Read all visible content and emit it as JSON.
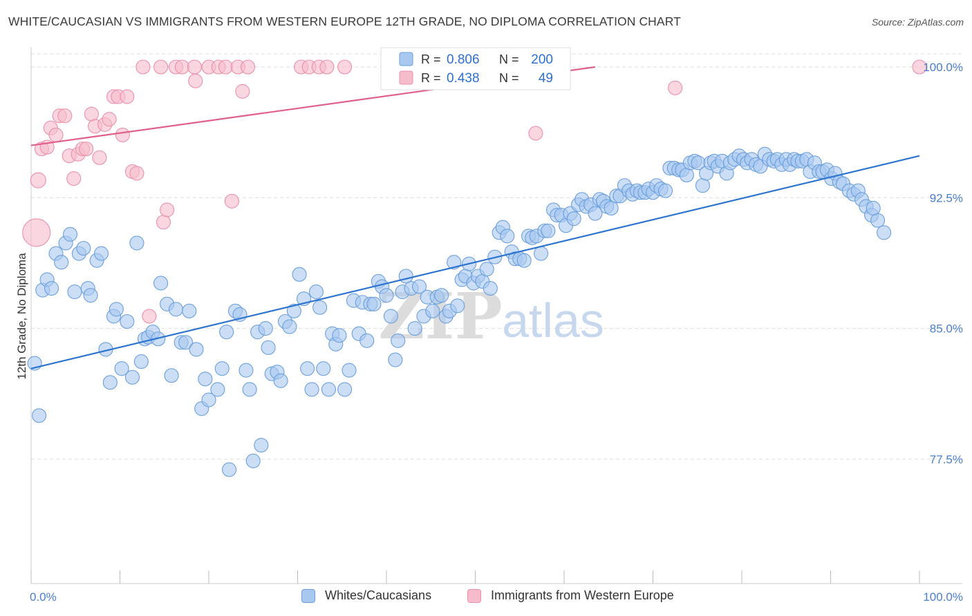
{
  "title": "WHITE/CAUCASIAN VS IMMIGRANTS FROM WESTERN EUROPE 12TH GRADE, NO DIPLOMA CORRELATION CHART",
  "source": "Source: ZipAtlas.com",
  "watermark": {
    "zip": "ZIP",
    "atlas": "atlas"
  },
  "colors": {
    "blue_fill": "#a9c8f0",
    "blue_stroke": "#6a9fdc",
    "blue_line": "#2d74d0",
    "pink_fill": "#f7bccb",
    "pink_stroke": "#ec8fa8",
    "pink_line": "#e0608a",
    "axis_text": "#4a7fcc",
    "grid": "#dddddd"
  },
  "stats_legend": {
    "rows": [
      {
        "r_label": "R =",
        "r_value": "0.806",
        "n_label": "N =",
        "n_value": "200"
      },
      {
        "r_label": "R =",
        "r_value": "0.438",
        "n_label": "N =",
        "n_value": "49"
      }
    ]
  },
  "chart_data": {
    "type": "scatter",
    "title": "WHITE/CAUCASIAN VS IMMIGRANTS FROM WESTERN EUROPE 12TH GRADE, NO DIPLOMA CORRELATION CHART",
    "xlabel": "",
    "ylabel": "12th Grade, No Diploma",
    "xlim": [
      0,
      100
    ],
    "ylim": [
      70.0,
      101.0
    ],
    "x_tick_labels": [
      "0.0%",
      "100.0%"
    ],
    "y_ticks": [
      77.5,
      85.0,
      92.5,
      100.0
    ],
    "y_tick_labels": [
      "77.5%",
      "85.0%",
      "92.5%",
      "100.0%"
    ],
    "grid": true,
    "legend_position": "bottom",
    "series": [
      {
        "name": "Whites/Caucasians",
        "color": "#a9c8f0",
        "trend": {
          "x": [
            0,
            100
          ],
          "y": [
            82.7,
            94.9
          ]
        },
        "points": [
          [
            0.4,
            83.0
          ],
          [
            0.9,
            80.0
          ],
          [
            1.3,
            87.2
          ],
          [
            1.8,
            87.8
          ],
          [
            2.3,
            87.3
          ],
          [
            2.8,
            89.3
          ],
          [
            3.4,
            88.8
          ],
          [
            3.9,
            89.9
          ],
          [
            4.4,
            90.4
          ],
          [
            4.9,
            87.1
          ],
          [
            5.4,
            89.3
          ],
          [
            5.9,
            89.6
          ],
          [
            6.4,
            87.3
          ],
          [
            6.7,
            86.9
          ],
          [
            7.4,
            88.9
          ],
          [
            7.9,
            89.3
          ],
          [
            8.4,
            83.8
          ],
          [
            8.9,
            81.9
          ],
          [
            9.3,
            85.7
          ],
          [
            9.6,
            86.1
          ],
          [
            10.2,
            82.7
          ],
          [
            10.8,
            85.4
          ],
          [
            11.4,
            82.2
          ],
          [
            11.9,
            89.9
          ],
          [
            12.4,
            83.1
          ],
          [
            12.8,
            84.4
          ],
          [
            13.2,
            84.5
          ],
          [
            13.7,
            84.8
          ],
          [
            14.3,
            84.4
          ],
          [
            14.6,
            87.6
          ],
          [
            15.3,
            86.4
          ],
          [
            15.8,
            82.3
          ],
          [
            16.3,
            86.1
          ],
          [
            16.9,
            84.2
          ],
          [
            17.4,
            84.2
          ],
          [
            17.8,
            86.0
          ],
          [
            18.6,
            83.8
          ],
          [
            19.2,
            80.4
          ],
          [
            19.6,
            82.1
          ],
          [
            20.0,
            80.9
          ],
          [
            21.0,
            81.5
          ],
          [
            21.5,
            82.7
          ],
          [
            22.0,
            84.8
          ],
          [
            22.3,
            76.9
          ],
          [
            23.0,
            86.0
          ],
          [
            23.5,
            85.8
          ],
          [
            24.2,
            82.6
          ],
          [
            24.6,
            81.5
          ],
          [
            25.0,
            77.4
          ],
          [
            25.5,
            84.8
          ],
          [
            25.9,
            78.3
          ],
          [
            26.4,
            85.0
          ],
          [
            26.7,
            83.9
          ],
          [
            27.1,
            82.4
          ],
          [
            27.7,
            82.5
          ],
          [
            28.1,
            82.0
          ],
          [
            28.6,
            85.4
          ],
          [
            29.1,
            85.1
          ],
          [
            29.6,
            86.0
          ],
          [
            30.2,
            88.1
          ],
          [
            30.7,
            86.7
          ],
          [
            31.1,
            82.7
          ],
          [
            31.6,
            81.5
          ],
          [
            32.1,
            87.1
          ],
          [
            32.5,
            86.2
          ],
          [
            32.9,
            82.7
          ],
          [
            33.5,
            81.5
          ],
          [
            33.9,
            84.7
          ],
          [
            34.3,
            84.1
          ],
          [
            34.7,
            84.6
          ],
          [
            35.3,
            81.5
          ],
          [
            35.8,
            82.6
          ],
          [
            36.3,
            86.6
          ],
          [
            36.9,
            84.7
          ],
          [
            37.3,
            86.5
          ],
          [
            37.8,
            84.3
          ],
          [
            38.2,
            86.4
          ],
          [
            38.6,
            86.4
          ],
          [
            39.1,
            87.7
          ],
          [
            39.5,
            87.4
          ],
          [
            40.0,
            86.9
          ],
          [
            40.5,
            85.7
          ],
          [
            41.0,
            83.2
          ],
          [
            41.3,
            84.3
          ],
          [
            41.8,
            87.1
          ],
          [
            42.2,
            88.0
          ],
          [
            42.8,
            87.3
          ],
          [
            43.2,
            85.0
          ],
          [
            43.7,
            87.4
          ],
          [
            44.2,
            85.7
          ],
          [
            44.6,
            86.8
          ],
          [
            45.2,
            86.0
          ],
          [
            45.7,
            86.8
          ],
          [
            46.2,
            86.9
          ],
          [
            46.7,
            85.7
          ],
          [
            47.1,
            86.0
          ],
          [
            47.6,
            88.8
          ],
          [
            48.0,
            86.3
          ],
          [
            48.5,
            87.8
          ],
          [
            48.9,
            88.0
          ],
          [
            49.3,
            88.7
          ],
          [
            49.8,
            87.6
          ],
          [
            50.3,
            88.0
          ],
          [
            50.8,
            87.7
          ],
          [
            51.3,
            88.4
          ],
          [
            51.7,
            87.3
          ],
          [
            52.2,
            89.1
          ],
          [
            52.7,
            90.5
          ],
          [
            53.1,
            90.8
          ],
          [
            53.6,
            90.3
          ],
          [
            54.1,
            89.4
          ],
          [
            54.5,
            89.0
          ],
          [
            55.0,
            89.0
          ],
          [
            55.5,
            88.9
          ],
          [
            56.0,
            90.3
          ],
          [
            56.4,
            90.2
          ],
          [
            56.9,
            90.3
          ],
          [
            57.4,
            89.3
          ],
          [
            57.8,
            90.6
          ],
          [
            58.2,
            90.6
          ],
          [
            58.8,
            91.8
          ],
          [
            59.2,
            91.5
          ],
          [
            59.7,
            91.5
          ],
          [
            60.2,
            90.9
          ],
          [
            60.7,
            91.6
          ],
          [
            61.1,
            91.3
          ],
          [
            61.6,
            92.1
          ],
          [
            62.0,
            92.4
          ],
          [
            62.5,
            92.0
          ],
          [
            63.0,
            92.1
          ],
          [
            63.5,
            91.6
          ],
          [
            64.0,
            92.4
          ],
          [
            64.4,
            92.3
          ],
          [
            64.8,
            92.0
          ],
          [
            65.3,
            91.9
          ],
          [
            65.9,
            92.6
          ],
          [
            66.3,
            92.6
          ],
          [
            66.8,
            93.2
          ],
          [
            67.3,
            92.9
          ],
          [
            67.7,
            92.7
          ],
          [
            68.2,
            92.9
          ],
          [
            68.6,
            92.8
          ],
          [
            69.1,
            92.8
          ],
          [
            69.5,
            93.0
          ],
          [
            70.0,
            92.8
          ],
          [
            70.4,
            93.2
          ],
          [
            70.9,
            93.0
          ],
          [
            71.4,
            92.9
          ],
          [
            71.9,
            94.2
          ],
          [
            72.4,
            94.2
          ],
          [
            72.9,
            94.1
          ],
          [
            73.3,
            94.1
          ],
          [
            73.8,
            93.8
          ],
          [
            74.2,
            94.5
          ],
          [
            74.7,
            94.6
          ],
          [
            75.1,
            94.5
          ],
          [
            75.6,
            93.2
          ],
          [
            76.0,
            93.9
          ],
          [
            76.5,
            94.5
          ],
          [
            76.9,
            94.6
          ],
          [
            77.3,
            94.3
          ],
          [
            77.8,
            94.6
          ],
          [
            78.3,
            93.9
          ],
          [
            78.7,
            94.5
          ],
          [
            79.2,
            94.7
          ],
          [
            79.7,
            94.9
          ],
          [
            80.2,
            94.7
          ],
          [
            80.6,
            94.5
          ],
          [
            81.1,
            94.7
          ],
          [
            81.6,
            94.4
          ],
          [
            82.1,
            94.3
          ],
          [
            82.6,
            95.0
          ],
          [
            83.1,
            94.7
          ],
          [
            83.6,
            94.6
          ],
          [
            84.0,
            94.7
          ],
          [
            84.5,
            94.4
          ],
          [
            85.0,
            94.7
          ],
          [
            85.4,
            94.4
          ],
          [
            85.9,
            94.7
          ],
          [
            86.3,
            94.6
          ],
          [
            86.8,
            94.6
          ],
          [
            87.3,
            94.7
          ],
          [
            87.7,
            94.0
          ],
          [
            88.2,
            94.5
          ],
          [
            88.7,
            94.0
          ],
          [
            89.1,
            94.0
          ],
          [
            89.6,
            94.1
          ],
          [
            90.1,
            93.6
          ],
          [
            90.5,
            93.9
          ],
          [
            91.0,
            93.4
          ],
          [
            91.4,
            93.3
          ],
          [
            92.1,
            92.9
          ],
          [
            92.6,
            92.7
          ],
          [
            93.1,
            92.9
          ],
          [
            93.5,
            92.4
          ],
          [
            94.0,
            92.0
          ],
          [
            94.6,
            91.5
          ],
          [
            95.3,
            91.2
          ],
          [
            96.0,
            90.5
          ],
          [
            94.8,
            91.9
          ]
        ]
      },
      {
        "name": "Immigrants from Western Europe",
        "color": "#f7bccb",
        "trend": {
          "x": [
            0,
            63.5
          ],
          "y": [
            95.5,
            100.0
          ]
        },
        "points": [
          [
            0.6,
            90.5
          ],
          [
            0.8,
            93.5
          ],
          [
            1.2,
            95.3
          ],
          [
            1.8,
            95.4
          ],
          [
            2.2,
            96.5
          ],
          [
            2.8,
            96.1
          ],
          [
            3.2,
            97.2
          ],
          [
            3.8,
            97.2
          ],
          [
            4.3,
            94.9
          ],
          [
            4.8,
            93.6
          ],
          [
            5.3,
            95.0
          ],
          [
            5.8,
            95.3
          ],
          [
            6.2,
            95.3
          ],
          [
            6.8,
            97.3
          ],
          [
            7.2,
            96.6
          ],
          [
            7.7,
            94.8
          ],
          [
            8.3,
            96.7
          ],
          [
            8.8,
            97.0
          ],
          [
            9.3,
            98.3
          ],
          [
            9.8,
            98.3
          ],
          [
            10.3,
            96.1
          ],
          [
            10.8,
            98.3
          ],
          [
            11.4,
            94.0
          ],
          [
            11.9,
            93.9
          ],
          [
            12.6,
            100.0
          ],
          [
            13.3,
            85.7
          ],
          [
            14.6,
            100.0
          ],
          [
            14.9,
            91.1
          ],
          [
            15.3,
            91.8
          ],
          [
            16.3,
            100.0
          ],
          [
            17.0,
            100.0
          ],
          [
            18.4,
            100.0
          ],
          [
            18.5,
            99.2
          ],
          [
            20.0,
            100.0
          ],
          [
            21.1,
            100.0
          ],
          [
            21.9,
            100.0
          ],
          [
            22.6,
            92.3
          ],
          [
            23.3,
            100.0
          ],
          [
            23.8,
            98.6
          ],
          [
            24.4,
            100.0
          ],
          [
            30.4,
            100.0
          ],
          [
            31.3,
            100.0
          ],
          [
            32.4,
            100.0
          ],
          [
            33.3,
            100.0
          ],
          [
            35.3,
            100.0
          ],
          [
            41.0,
            100.0
          ],
          [
            56.8,
            96.2
          ],
          [
            72.5,
            98.8
          ],
          [
            100.0,
            100.0
          ]
        ]
      }
    ]
  }
}
